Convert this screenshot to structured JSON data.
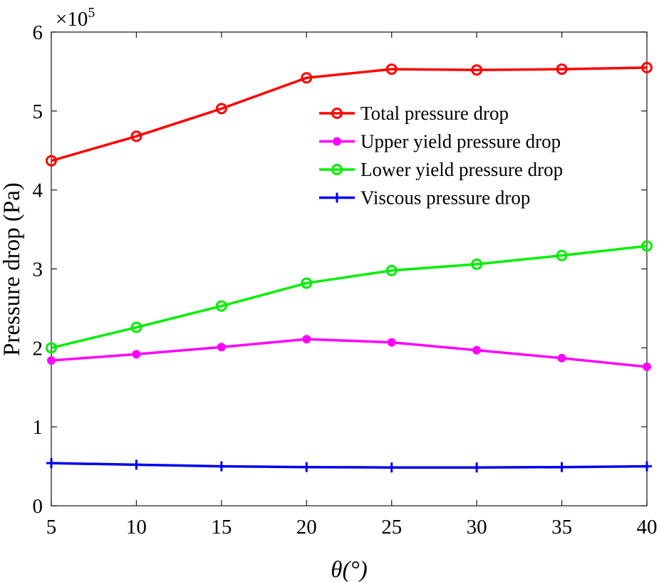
{
  "chart_data": {
    "type": "line",
    "title": "",
    "xlabel": "θ(°)",
    "ylabel": "Pressure drop (Pa)",
    "y_multiplier_label": {
      "base": "×10",
      "exponent": "5"
    },
    "x": [
      5,
      10,
      15,
      20,
      25,
      30,
      35,
      40
    ],
    "xticks": [
      "5",
      "10",
      "15",
      "20",
      "25",
      "30",
      "35",
      "40"
    ],
    "yticks": [
      "0",
      "1",
      "2",
      "3",
      "4",
      "5",
      "6"
    ],
    "xlim": [
      5,
      40
    ],
    "ylim": [
      0,
      6
    ],
    "y_unit_scale": 100000,
    "grid": false,
    "legend_location": "upper-right",
    "series": [
      {
        "name": "Total pressure drop",
        "color": "#ff0000",
        "marker": "open-circle",
        "values": [
          4.37,
          4.68,
          5.03,
          5.42,
          5.53,
          5.52,
          5.53,
          5.55
        ]
      },
      {
        "name": "Upper yield pressure drop",
        "color": "#ff00ff",
        "marker": "filled-dot",
        "values": [
          1.84,
          1.92,
          2.01,
          2.11,
          2.07,
          1.97,
          1.87,
          1.76
        ]
      },
      {
        "name": "Lower yield pressure drop",
        "color": "#00ee00",
        "marker": "open-circle",
        "values": [
          2.0,
          2.26,
          2.53,
          2.82,
          2.98,
          3.06,
          3.17,
          3.29
        ]
      },
      {
        "name": "Viscous pressure drop",
        "color": "#0000ee",
        "marker": "plus",
        "values": [
          0.54,
          0.52,
          0.5,
          0.49,
          0.485,
          0.485,
          0.49,
          0.5
        ]
      }
    ]
  }
}
